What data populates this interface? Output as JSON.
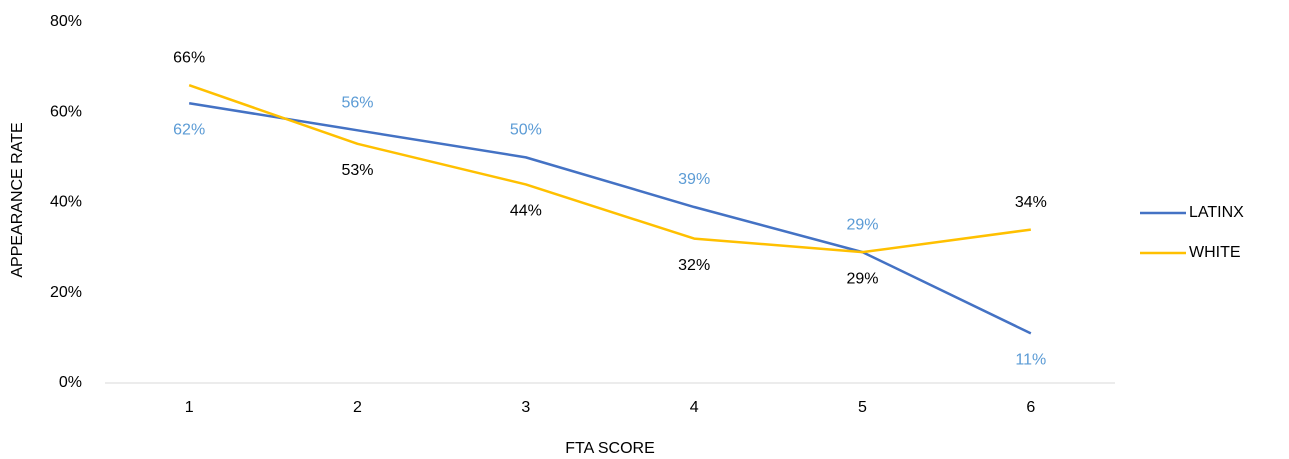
{
  "chart_data": {
    "type": "line",
    "x_label": "FTA SCORE",
    "y_label": "APPEARANCE RATE",
    "categories": [
      "1",
      "2",
      "3",
      "4",
      "5",
      "6"
    ],
    "series": [
      {
        "name": "LATINX",
        "color": "#4472c4",
        "label_color": "#5b9bd5",
        "values": [
          62,
          56,
          50,
          39,
          29,
          11
        ],
        "value_labels": [
          "62%",
          "56%",
          "50%",
          "39%",
          "29%",
          "11%"
        ]
      },
      {
        "name": "WHITE",
        "color": "#ffc000",
        "label_color": "#000000",
        "values": [
          66,
          53,
          44,
          32,
          29,
          34
        ],
        "value_labels": [
          "66%",
          "53%",
          "44%",
          "32%",
          "29%",
          "34%"
        ]
      }
    ],
    "ylim": [
      0,
      80
    ],
    "yticks": [
      {
        "value": 0,
        "label": "0%"
      },
      {
        "value": 20,
        "label": "20%"
      },
      {
        "value": 40,
        "label": "40%"
      },
      {
        "value": 60,
        "label": "60%"
      },
      {
        "value": 80,
        "label": "80%"
      }
    ],
    "grid": false,
    "legend": "right"
  }
}
